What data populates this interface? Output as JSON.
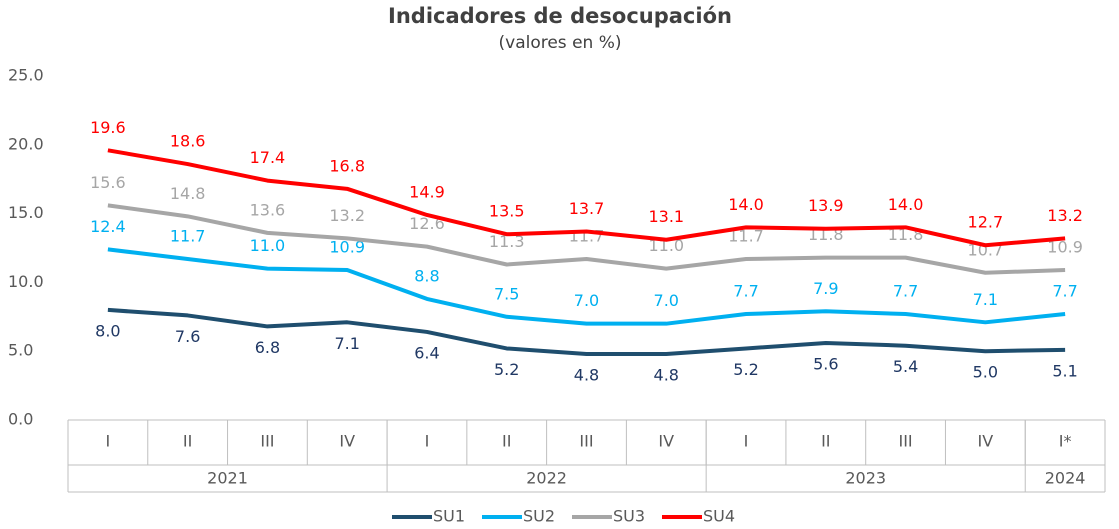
{
  "chart_data": {
    "type": "line",
    "title": "Indicadores de desocupación",
    "subtitle": "(valores en %)",
    "categories": [
      "I",
      "II",
      "III",
      "IV",
      "I",
      "II",
      "III",
      "IV",
      "I",
      "II",
      "III",
      "IV",
      "I*"
    ],
    "groups": [
      {
        "label": "2021",
        "count": 4
      },
      {
        "label": "2022",
        "count": 4
      },
      {
        "label": "2023",
        "count": 4
      },
      {
        "label": "2024",
        "count": 1
      }
    ],
    "ylim": [
      0,
      25
    ],
    "yticks": [
      {
        "value": 0,
        "label": "0.0"
      },
      {
        "value": 5,
        "label": "5.0"
      },
      {
        "value": 10,
        "label": "10.0"
      },
      {
        "value": 15,
        "label": "15.0"
      },
      {
        "value": 20,
        "label": "20.0"
      },
      {
        "value": 25,
        "label": "25.0"
      }
    ],
    "grid": false,
    "legend": "bottom",
    "series": [
      {
        "name": "SU1",
        "color": "#1f4e6e",
        "label_color": "#203864",
        "label_position": "below",
        "values": [
          8.0,
          7.6,
          6.8,
          7.1,
          6.4,
          5.2,
          4.8,
          4.8,
          5.2,
          5.6,
          5.4,
          5.0,
          5.1
        ],
        "value_labels": [
          "8.0",
          "7.6",
          "6.8",
          "7.1",
          "6.4",
          "5.2",
          "4.8",
          "4.8",
          "5.2",
          "5.6",
          "5.4",
          "5.0",
          "5.1"
        ]
      },
      {
        "name": "SU2",
        "color": "#00b0f0",
        "label_color": "#00b0f0",
        "label_position": "above",
        "values": [
          12.4,
          11.7,
          11.0,
          10.9,
          8.8,
          7.5,
          7.0,
          7.0,
          7.7,
          7.9,
          7.7,
          7.1,
          7.7
        ],
        "value_labels": [
          "12.4",
          "11.7",
          "11.0",
          "10.9",
          "8.8",
          "7.5",
          "7.0",
          "7.0",
          "7.7",
          "7.9",
          "7.7",
          "7.1",
          "7.7"
        ]
      },
      {
        "name": "SU3",
        "color": "#a6a6a6",
        "label_color": "#a6a6a6",
        "label_position": "above",
        "values": [
          15.6,
          14.8,
          13.6,
          13.2,
          12.6,
          11.3,
          11.7,
          11.0,
          11.7,
          11.8,
          11.8,
          10.7,
          10.9
        ],
        "value_labels": [
          "15.6",
          "14.8",
          "13.6",
          "13.2",
          "12.6",
          "11.3",
          "11.7",
          "11.0",
          "11.7",
          "11.8",
          "11.8",
          "10.7",
          "10.9"
        ]
      },
      {
        "name": "SU4",
        "color": "#ff0000",
        "label_color": "#ff0000",
        "label_position": "above",
        "values": [
          19.6,
          18.6,
          17.4,
          16.8,
          14.9,
          13.5,
          13.7,
          13.1,
          14.0,
          13.9,
          14.0,
          12.7,
          13.2
        ],
        "value_labels": [
          "19.6",
          "18.6",
          "17.4",
          "16.8",
          "14.9",
          "13.5",
          "13.7",
          "13.1",
          "14.0",
          "13.9",
          "14.0",
          "12.7",
          "13.2"
        ]
      }
    ]
  }
}
